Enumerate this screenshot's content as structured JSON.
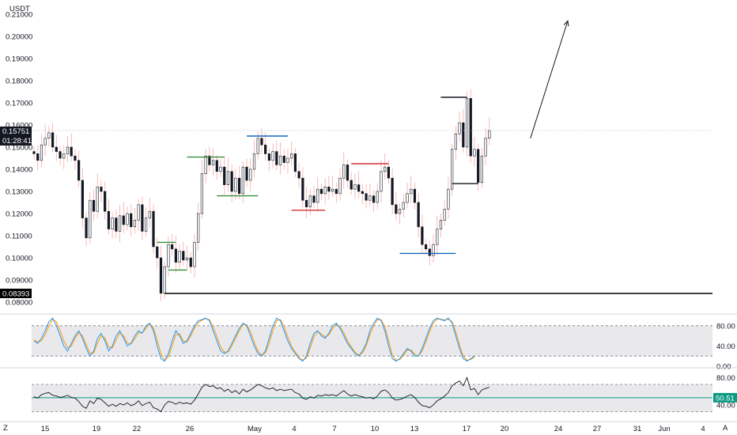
{
  "chart_data": [
    {
      "type": "candlestick",
      "name": "price",
      "currency_label": "USDT",
      "ylim": [
        0.075,
        0.215
      ],
      "y_ticks": [
        "0.08000",
        "0.09000",
        "0.10000",
        "0.11000",
        "0.12000",
        "0.13000",
        "0.14000",
        "0.15000",
        "0.16000",
        "0.17000",
        "0.18000",
        "0.19000",
        "0.20000",
        "0.21000"
      ],
      "x_ticks": [
        "15",
        "19",
        "22",
        "26",
        "May",
        "4",
        "7",
        "10",
        "13",
        "17",
        "20",
        "24",
        "27",
        "31",
        "Jun",
        "4"
      ],
      "last_price": {
        "value": 0.15751,
        "label": "0.15751",
        "countdown": "01:28:41",
        "color": "#131722"
      },
      "support_line": {
        "value": 0.08393,
        "label": "0.08393",
        "color": "#000000"
      },
      "closes": [
        0.147,
        0.144,
        0.151,
        0.154,
        0.1565,
        0.15,
        0.148,
        0.145,
        0.147,
        0.15,
        0.146,
        0.144,
        0.135,
        0.118,
        0.109,
        0.126,
        0.121,
        0.132,
        0.13,
        0.121,
        0.113,
        0.118,
        0.112,
        0.119,
        0.115,
        0.12,
        0.114,
        0.117,
        0.124,
        0.112,
        0.118,
        0.121,
        0.105,
        0.1,
        0.084,
        0.096,
        0.106,
        0.104,
        0.098,
        0.103,
        0.099,
        0.1,
        0.096,
        0.107,
        0.12,
        0.138,
        0.146,
        0.142,
        0.144,
        0.139,
        0.141,
        0.133,
        0.139,
        0.13,
        0.136,
        0.129,
        0.141,
        0.135,
        0.14,
        0.147,
        0.154,
        0.151,
        0.147,
        0.144,
        0.148,
        0.142,
        0.146,
        0.143,
        0.145,
        0.147,
        0.139,
        0.136,
        0.126,
        0.123,
        0.128,
        0.125,
        0.131,
        0.129,
        0.132,
        0.13,
        0.131,
        0.129,
        0.136,
        0.142,
        0.135,
        0.131,
        0.133,
        0.13,
        0.129,
        0.126,
        0.128,
        0.125,
        0.13,
        0.139,
        0.141,
        0.136,
        0.124,
        0.12,
        0.122,
        0.125,
        0.129,
        0.131,
        0.125,
        0.114,
        0.106,
        0.104,
        0.101,
        0.106,
        0.113,
        0.117,
        0.122,
        0.131,
        0.149,
        0.156,
        0.161,
        0.15,
        0.172,
        0.146,
        0.149,
        0.134,
        0.146,
        0.154,
        0.1575
      ],
      "drawings": [
        {
          "type": "hline",
          "value": 0.107,
          "from": 33,
          "to": 38,
          "color": "#388e3c"
        },
        {
          "type": "hline",
          "value": 0.0945,
          "from": 36,
          "to": 41,
          "color": "#388e3c"
        },
        {
          "type": "hline",
          "value": 0.1455,
          "from": 41,
          "to": 51,
          "color": "#388e3c"
        },
        {
          "type": "hline",
          "value": 0.128,
          "from": 49,
          "to": 60,
          "color": "#388e3c"
        },
        {
          "type": "hline",
          "value": 0.155,
          "from": 57,
          "to": 68,
          "color": "#1565c0"
        },
        {
          "type": "hline",
          "value": 0.1215,
          "from": 69,
          "to": 78,
          "color": "#d32f2f"
        },
        {
          "type": "hline",
          "value": 0.1425,
          "from": 85,
          "to": 95,
          "color": "#d32f2f"
        },
        {
          "type": "hline",
          "value": 0.102,
          "from": 98,
          "to": 113,
          "color": "#1565c0"
        },
        {
          "type": "hline",
          "value": 0.1725,
          "from": 109,
          "to": 116,
          "color": "#131722"
        },
        {
          "type": "hline",
          "value": 0.1335,
          "from": 112,
          "to": 119,
          "color": "#131722"
        },
        {
          "type": "arrow",
          "from_bar": 133,
          "from_value": 0.154,
          "to_bar": 143,
          "to_value": 0.207,
          "color": "#131722"
        }
      ]
    },
    {
      "type": "line",
      "name": "stochastic_rsi",
      "ylim": [
        0,
        100
      ],
      "y_ticks": [
        "80.00",
        "40.00",
        "0.00"
      ],
      "bands": {
        "upper": 80,
        "lower": 20
      },
      "series": [
        {
          "color": "#2196f3",
          "values": [
            50,
            45,
            55,
            70,
            88,
            95,
            80,
            60,
            40,
            30,
            45,
            60,
            70,
            55,
            35,
            20,
            30,
            55,
            65,
            50,
            30,
            40,
            60,
            70,
            55,
            40,
            45,
            60,
            70,
            65,
            80,
            85,
            70,
            40,
            15,
            10,
            25,
            50,
            70,
            60,
            45,
            50,
            65,
            80,
            90,
            92,
            95,
            90,
            70,
            50,
            30,
            25,
            30,
            45,
            60,
            75,
            85,
            80,
            60,
            40,
            25,
            20,
            30,
            55,
            80,
            95,
            90,
            70,
            50,
            35,
            25,
            15,
            10,
            20,
            45,
            65,
            70,
            60,
            55,
            65,
            80,
            85,
            75,
            60,
            45,
            35,
            25,
            20,
            30,
            45,
            70,
            85,
            95,
            90,
            70,
            40,
            15,
            10,
            15,
            25,
            35,
            30,
            20,
            20,
            35,
            55,
            75,
            90,
            95,
            92,
            90,
            95,
            85,
            60,
            35,
            15,
            10,
            15,
            20
          ]
        },
        {
          "color": "#ff9800",
          "values": [
            52,
            48,
            50,
            62,
            80,
            92,
            88,
            70,
            50,
            36,
            40,
            55,
            66,
            60,
            42,
            26,
            26,
            45,
            60,
            56,
            38,
            36,
            52,
            66,
            60,
            46,
            44,
            54,
            66,
            66,
            75,
            83,
            76,
            52,
            25,
            12,
            18,
            40,
            62,
            64,
            50,
            48,
            60,
            75,
            86,
            91,
            94,
            92,
            78,
            58,
            38,
            28,
            28,
            40,
            55,
            70,
            82,
            82,
            68,
            48,
            30,
            22,
            26,
            45,
            70,
            90,
            92,
            78,
            58,
            40,
            28,
            18,
            12,
            16,
            36,
            58,
            68,
            64,
            58,
            62,
            74,
            83,
            78,
            66,
            50,
            38,
            28,
            22,
            26,
            40,
            62,
            80,
            92,
            92,
            78,
            50,
            22,
            12,
            13,
            22,
            32,
            32,
            24,
            20,
            30,
            48,
            68,
            85,
            93,
            93,
            91,
            93,
            88,
            68,
            42,
            20,
            12,
            13,
            18
          ]
        }
      ]
    },
    {
      "type": "line",
      "name": "rsi",
      "ylim": [
        18,
        92
      ],
      "y_ticks": [
        "80.00",
        "40.00"
      ],
      "bands": {
        "upper": 70,
        "lower": 30
      },
      "midline": {
        "value": 50.51,
        "label": "50.51",
        "color": "#089981"
      },
      "series": [
        {
          "color": "#131722",
          "values": [
            52,
            50,
            55,
            57,
            58,
            54,
            53,
            51,
            52,
            54,
            51,
            50,
            45,
            38,
            35,
            46,
            42,
            50,
            48,
            43,
            38,
            41,
            38,
            42,
            40,
            43,
            39,
            41,
            46,
            39,
            42,
            44,
            36,
            34,
            30,
            40,
            45,
            44,
            41,
            44,
            42,
            43,
            41,
            47,
            56,
            66,
            70,
            67,
            68,
            64,
            65,
            60,
            63,
            58,
            61,
            56,
            63,
            59,
            62,
            66,
            70,
            68,
            65,
            63,
            65,
            61,
            63,
            61,
            62,
            63,
            58,
            56,
            50,
            48,
            52,
            50,
            54,
            53,
            55,
            54,
            55,
            53,
            57,
            61,
            56,
            53,
            55,
            53,
            52,
            50,
            51,
            49,
            53,
            60,
            62,
            58,
            50,
            47,
            48,
            50,
            53,
            55,
            51,
            44,
            39,
            38,
            36,
            40,
            46,
            49,
            53,
            58,
            68,
            72,
            75,
            68,
            80,
            62,
            64,
            55,
            62,
            64,
            66
          ]
        }
      ]
    }
  ],
  "footer": {
    "left_icon_label": "Z",
    "right_icon_label": "A"
  }
}
